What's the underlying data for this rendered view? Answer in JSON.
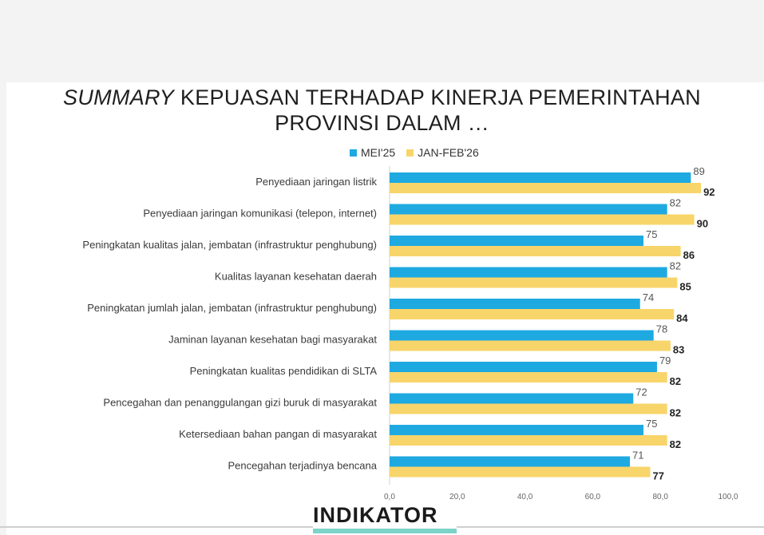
{
  "title": {
    "line1_em": "SUMMARY",
    "line1_rest": " KEPUASAN TERHADAP KINERJA PEMERINTAHAN",
    "line2": "PROVINSI DALAM …"
  },
  "logo": "INDIKATOR",
  "colors": {
    "mei25": "#1fa9e1",
    "jan26": "#f8d56b"
  },
  "chart_data": {
    "type": "bar",
    "orientation": "horizontal",
    "title": "SUMMARY KEPUASAN TERHADAP KINERJA PEMERINTAHAN PROVINSI DALAM …",
    "categories": [
      "Penyediaan jaringan listrik",
      "Penyediaan jaringan komunikasi (telepon, internet)",
      "Peningkatan kualitas jalan, jembatan (infrastruktur penghubung)",
      "Kualitas layanan kesehatan daerah",
      "Peningkatan jumlah jalan, jembatan (infrastruktur penghubung)",
      "Jaminan layanan kesehatan bagi masyarakat",
      "Peningkatan kualitas pendidikan di SLTA",
      "Pencegahan dan penanggulangan gizi buruk di masyarakat",
      "Ketersediaan bahan pangan di masyarakat",
      "Pencegahan terjadinya bencana"
    ],
    "series": [
      {
        "name": "MEI'25",
        "values": [
          89,
          82,
          75,
          82,
          74,
          78,
          79,
          72,
          75,
          71
        ]
      },
      {
        "name": "JAN-FEB'26",
        "values": [
          92,
          90,
          86,
          85,
          84,
          83,
          82,
          82,
          82,
          77
        ]
      }
    ],
    "xlim": [
      0,
      100
    ],
    "xticks": [
      "0,0",
      "20,0",
      "40,0",
      "60,0",
      "80,0",
      "100,0"
    ],
    "legend": "top-center"
  }
}
